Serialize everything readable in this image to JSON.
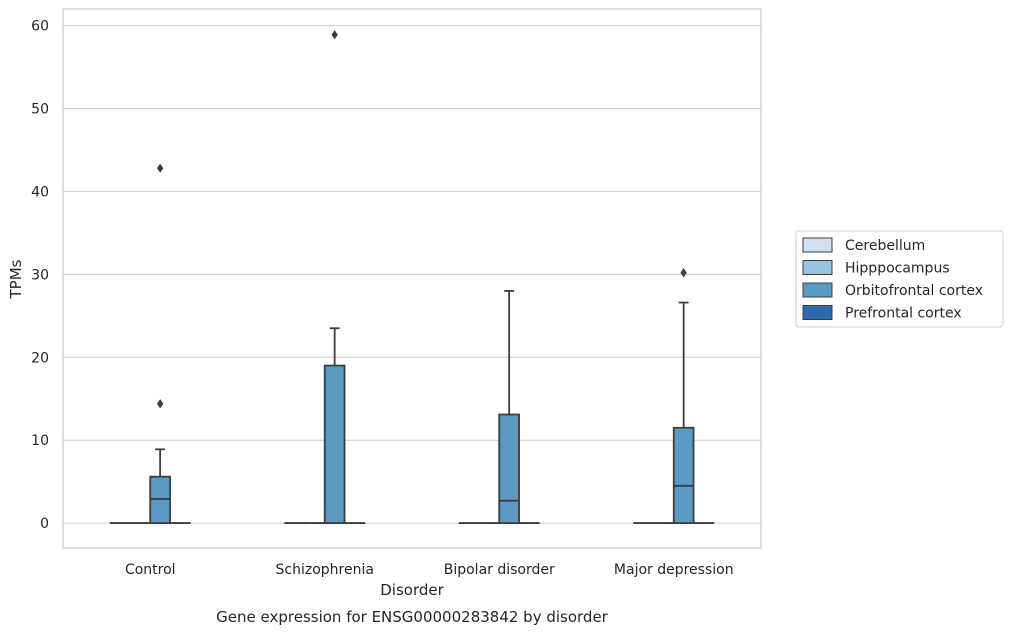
{
  "chart_data": {
    "type": "box",
    "title": "",
    "caption": "Gene expression for ENSG00000283842 by disorder",
    "xlabel": "Disorder",
    "ylabel": "TPMs",
    "ylim": [
      -3,
      62
    ],
    "yticks": [
      0,
      10,
      20,
      30,
      40,
      50,
      60
    ],
    "grid": true,
    "legend_position": "right",
    "categories": [
      "Control",
      "Schizophrenia",
      "Bipolar disorder",
      "Major depression"
    ],
    "series": [
      {
        "name": "Cerebellum",
        "color": "#d0e1f2",
        "boxes": [
          {
            "q1": 0,
            "median": 0,
            "q3": 0,
            "whisker_low": 0,
            "whisker_high": 0,
            "outliers": []
          },
          {
            "q1": 0,
            "median": 0,
            "q3": 0,
            "whisker_low": 0,
            "whisker_high": 0,
            "outliers": []
          },
          {
            "q1": 0,
            "median": 0,
            "q3": 0,
            "whisker_low": 0,
            "whisker_high": 0,
            "outliers": []
          },
          {
            "q1": 0,
            "median": 0,
            "q3": 0,
            "whisker_low": 0,
            "whisker_high": 0,
            "outliers": []
          }
        ]
      },
      {
        "name": "Hipppocampus",
        "color": "#94c4df",
        "boxes": [
          {
            "q1": 0,
            "median": 0,
            "q3": 0,
            "whisker_low": 0,
            "whisker_high": 0,
            "outliers": []
          },
          {
            "q1": 0,
            "median": 0,
            "q3": 0,
            "whisker_low": 0,
            "whisker_high": 0,
            "outliers": []
          },
          {
            "q1": 0,
            "median": 0,
            "q3": 0,
            "whisker_low": 0,
            "whisker_high": 0,
            "outliers": []
          },
          {
            "q1": 0,
            "median": 0,
            "q3": 0,
            "whisker_low": 0,
            "whisker_high": 0,
            "outliers": []
          }
        ]
      },
      {
        "name": "Orbitofrontal cortex",
        "color": "#5a9ac3",
        "boxes": [
          {
            "q1": 0,
            "median": 2.9,
            "q3": 5.6,
            "whisker_low": 0,
            "whisker_high": 8.9,
            "outliers": [
              14.4,
              42.8
            ]
          },
          {
            "q1": 0,
            "median": 0,
            "q3": 19.0,
            "whisker_low": 0,
            "whisker_high": 23.5,
            "outliers": [
              58.9
            ]
          },
          {
            "q1": 0,
            "median": 2.7,
            "q3": 13.1,
            "whisker_low": 0,
            "whisker_high": 28.0,
            "outliers": []
          },
          {
            "q1": 0,
            "median": 4.5,
            "q3": 11.5,
            "whisker_low": 0,
            "whisker_high": 26.6,
            "outliers": [
              30.2
            ]
          }
        ]
      },
      {
        "name": "Prefrontal cortex",
        "color": "#2a6aad",
        "boxes": [
          {
            "q1": 0,
            "median": 0,
            "q3": 0,
            "whisker_low": 0,
            "whisker_high": 0,
            "outliers": []
          },
          {
            "q1": 0,
            "median": 0,
            "q3": 0,
            "whisker_low": 0,
            "whisker_high": 0,
            "outliers": []
          },
          {
            "q1": 0,
            "median": 0,
            "q3": 0,
            "whisker_low": 0,
            "whisker_high": 0,
            "outliers": []
          },
          {
            "q1": 0,
            "median": 0,
            "q3": 0,
            "whisker_low": 0,
            "whisker_high": 0,
            "outliers": []
          }
        ]
      }
    ]
  }
}
